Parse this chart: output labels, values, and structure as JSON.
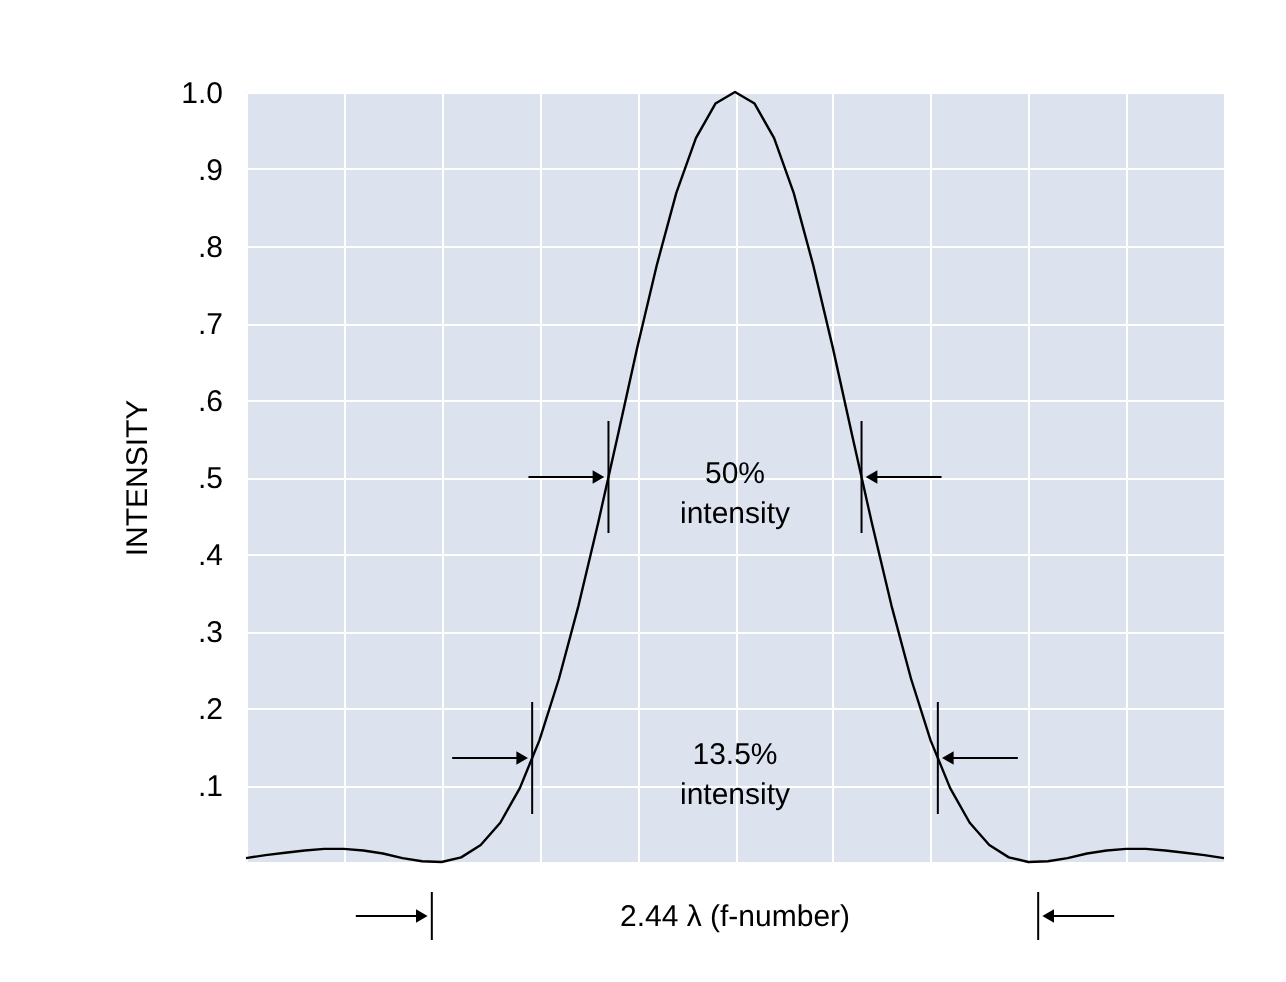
{
  "chart_data": {
    "type": "line",
    "ylabel": "INTENSITY",
    "categories": [
      null,
      null,
      null,
      null,
      null,
      null,
      null,
      null,
      null,
      null,
      null,
      null,
      null,
      null,
      null,
      null,
      null,
      null,
      null,
      null,
      null,
      null,
      null,
      null,
      null,
      null,
      null,
      null,
      null,
      null,
      null,
      null,
      null,
      null,
      null,
      null,
      null,
      null,
      null,
      null,
      null,
      null,
      null,
      null,
      null,
      null,
      null,
      null,
      null,
      null,
      null
    ],
    "series": [
      {
        "color": "#000000",
        "values": [
          0.005,
          0.009,
          0.012,
          0.015,
          0.017,
          0.017,
          0.015,
          0.011,
          0.005,
          0.001,
          0.0,
          0.006,
          0.022,
          0.051,
          0.096,
          0.158,
          0.238,
          0.333,
          0.44,
          0.553,
          0.668,
          0.775,
          0.869,
          0.94,
          0.985,
          1.0,
          0.985,
          0.94,
          0.869,
          0.775,
          0.668,
          0.553,
          0.44,
          0.333,
          0.238,
          0.158,
          0.096,
          0.051,
          0.022,
          0.006,
          0.0,
          0.001,
          0.005,
          0.011,
          0.015,
          0.017,
          0.017,
          0.015,
          0.012,
          0.009,
          0.005
        ]
      }
    ],
    "ylim": [
      0,
      1.0
    ],
    "yticks": [
      {
        "value": 0.1,
        "label": ".1"
      },
      {
        "value": 0.2,
        "label": ".2"
      },
      {
        "value": 0.3,
        "label": ".3"
      },
      {
        "value": 0.4,
        "label": ".4"
      },
      {
        "value": 0.5,
        "label": ".5"
      },
      {
        "value": 0.6,
        "label": ".6"
      },
      {
        "value": 0.7,
        "label": ".7"
      },
      {
        "value": 0.8,
        "label": ".8"
      },
      {
        "value": 0.9,
        "label": ".9"
      },
      {
        "value": 1.0,
        "label": "1.0"
      }
    ],
    "grid": true,
    "tick_labels": "y",
    "annotations": [
      "50% intensity",
      "13.5% intensity",
      "2.44 λ (f-number)"
    ]
  }
}
